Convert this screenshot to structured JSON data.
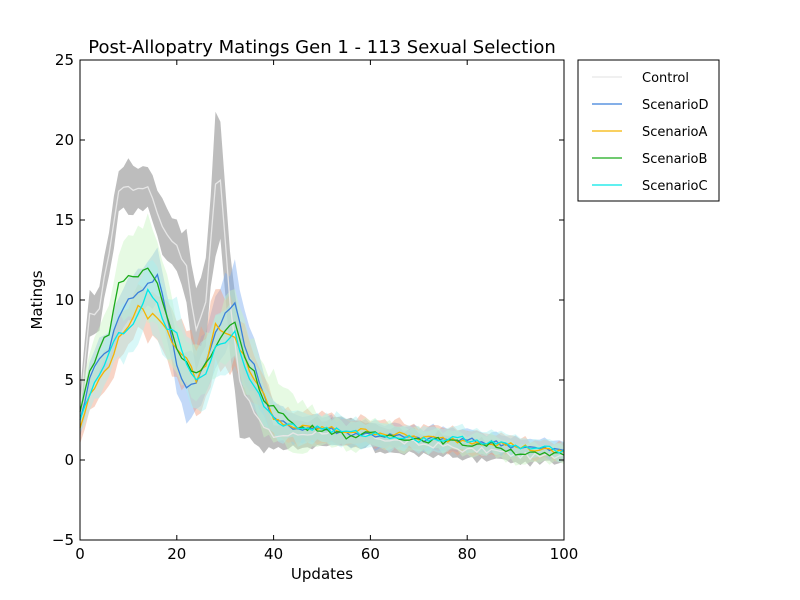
{
  "chart_data": {
    "type": "line",
    "title": "Post-Allopatry Matings Gen 1 - 113 Sexual Selection",
    "xlabel": "Updates",
    "ylabel": "Matings",
    "xlim": [
      0,
      100
    ],
    "ylim": [
      -5,
      25
    ],
    "x_ticks": [
      0,
      20,
      40,
      60,
      80,
      100
    ],
    "y_ticks": [
      -5,
      0,
      5,
      10,
      15,
      20,
      25
    ],
    "grid": false,
    "legend_position": "outside-right-top",
    "series": [
      {
        "name": "Control",
        "color": "#e6e6e6",
        "band_color": "#999999",
        "keypoints": [
          [
            0,
            3
          ],
          [
            2,
            9
          ],
          [
            4,
            9.5
          ],
          [
            6,
            13
          ],
          [
            8,
            16.8
          ],
          [
            10,
            17.2
          ],
          [
            12,
            16.8
          ],
          [
            14,
            17.2
          ],
          [
            16,
            15.5
          ],
          [
            18,
            14
          ],
          [
            20,
            13.5
          ],
          [
            22,
            12
          ],
          [
            24,
            8
          ],
          [
            26,
            10
          ],
          [
            28,
            17.3
          ],
          [
            29,
            17.4
          ],
          [
            31,
            10
          ],
          [
            33,
            5
          ],
          [
            35,
            3.5
          ],
          [
            38,
            2
          ],
          [
            40,
            1.5
          ],
          [
            45,
            1.6
          ],
          [
            50,
            1.8
          ],
          [
            55,
            1.6
          ],
          [
            60,
            1.5
          ],
          [
            65,
            1.2
          ],
          [
            70,
            1.0
          ],
          [
            75,
            0.9
          ],
          [
            80,
            0.6
          ],
          [
            85,
            0.6
          ],
          [
            90,
            0.3
          ],
          [
            95,
            0.2
          ],
          [
            100,
            0.3
          ]
        ],
        "band_width": [
          [
            0,
            1.5
          ],
          [
            10,
            1.5
          ],
          [
            20,
            1.5
          ],
          [
            26,
            3
          ],
          [
            29,
            4.5
          ],
          [
            33,
            3
          ],
          [
            40,
            0.8
          ],
          [
            60,
            0.8
          ],
          [
            100,
            0.4
          ]
        ]
      },
      {
        "name": "ScenarioD",
        "color": "#3a7fd9",
        "band_color": "#7aaaf0",
        "keypoints": [
          [
            0,
            2.5
          ],
          [
            2,
            5
          ],
          [
            4,
            6.5
          ],
          [
            6,
            7
          ],
          [
            8,
            9
          ],
          [
            10,
            10
          ],
          [
            12,
            10.5
          ],
          [
            14,
            11
          ],
          [
            16,
            11.5
          ],
          [
            18,
            9
          ],
          [
            20,
            6
          ],
          [
            22,
            4.5
          ],
          [
            24,
            5
          ],
          [
            26,
            6
          ],
          [
            28,
            8
          ],
          [
            30,
            9
          ],
          [
            32,
            10
          ],
          [
            34,
            7
          ],
          [
            36,
            6
          ],
          [
            38,
            4
          ],
          [
            40,
            2.5
          ],
          [
            45,
            2
          ],
          [
            50,
            2
          ],
          [
            55,
            1.7
          ],
          [
            60,
            1.6
          ],
          [
            65,
            1.5
          ],
          [
            70,
            1.3
          ],
          [
            75,
            1.3
          ],
          [
            80,
            1.2
          ],
          [
            85,
            1.1
          ],
          [
            90,
            0.9
          ],
          [
            95,
            0.7
          ],
          [
            100,
            0.6
          ]
        ],
        "band_width": [
          [
            0,
            1
          ],
          [
            15,
            1.5
          ],
          [
            32,
            2.5
          ],
          [
            40,
            0.9
          ],
          [
            100,
            0.5
          ]
        ]
      },
      {
        "name": "ScenarioA",
        "color": "#f5b300",
        "band_color": "#f0a080",
        "keypoints": [
          [
            0,
            2
          ],
          [
            2,
            4
          ],
          [
            4,
            5
          ],
          [
            6,
            6
          ],
          [
            8,
            7.5
          ],
          [
            10,
            8.5
          ],
          [
            12,
            9.5
          ],
          [
            14,
            9
          ],
          [
            16,
            9
          ],
          [
            18,
            8
          ],
          [
            20,
            7
          ],
          [
            22,
            6.5
          ],
          [
            24,
            5
          ],
          [
            26,
            6
          ],
          [
            28,
            8.5
          ],
          [
            30,
            8
          ],
          [
            32,
            7.5
          ],
          [
            34,
            6.5
          ],
          [
            36,
            5
          ],
          [
            38,
            4
          ],
          [
            40,
            2.5
          ],
          [
            45,
            2
          ],
          [
            50,
            2
          ],
          [
            55,
            1.8
          ],
          [
            60,
            1.8
          ],
          [
            65,
            1.6
          ],
          [
            70,
            1.4
          ],
          [
            75,
            1.3
          ],
          [
            80,
            1.2
          ],
          [
            85,
            1.1
          ],
          [
            90,
            0.9
          ],
          [
            95,
            0.6
          ],
          [
            100,
            0.5
          ]
        ],
        "band_width": [
          [
            0,
            1
          ],
          [
            14,
            1.5
          ],
          [
            28,
            2.5
          ],
          [
            40,
            1
          ],
          [
            100,
            0.5
          ]
        ]
      },
      {
        "name": "ScenarioB",
        "color": "#1aaa1a",
        "band_color": "#c8f5c0",
        "keypoints": [
          [
            0,
            3
          ],
          [
            2,
            5.5
          ],
          [
            4,
            7
          ],
          [
            6,
            8
          ],
          [
            8,
            11
          ],
          [
            10,
            11.5
          ],
          [
            12,
            11.5
          ],
          [
            14,
            12
          ],
          [
            16,
            11
          ],
          [
            18,
            9
          ],
          [
            20,
            7
          ],
          [
            22,
            6
          ],
          [
            24,
            5.5
          ],
          [
            26,
            6
          ],
          [
            28,
            7
          ],
          [
            30,
            8
          ],
          [
            32,
            8.5
          ],
          [
            34,
            6.5
          ],
          [
            36,
            5.5
          ],
          [
            38,
            3.5
          ],
          [
            40,
            3.5
          ],
          [
            43,
            2.5
          ],
          [
            45,
            2
          ],
          [
            50,
            2
          ],
          [
            55,
            1.5
          ],
          [
            60,
            1.6
          ],
          [
            65,
            1.5
          ],
          [
            70,
            1.3
          ],
          [
            75,
            1.2
          ],
          [
            80,
            1.0
          ],
          [
            85,
            1.0
          ],
          [
            90,
            0.5
          ],
          [
            95,
            0.3
          ],
          [
            100,
            0.3
          ]
        ],
        "band_width": [
          [
            0,
            1
          ],
          [
            14,
            3
          ],
          [
            22,
            1.5
          ],
          [
            34,
            2
          ],
          [
            42,
            2
          ],
          [
            50,
            0.9
          ],
          [
            100,
            0.5
          ]
        ]
      },
      {
        "name": "ScenarioC",
        "color": "#00e8e8",
        "band_color": "#a8f0f0",
        "keypoints": [
          [
            0,
            2.5
          ],
          [
            2,
            4
          ],
          [
            4,
            5.5
          ],
          [
            6,
            6.5
          ],
          [
            8,
            8
          ],
          [
            10,
            8
          ],
          [
            12,
            9
          ],
          [
            14,
            10.5
          ],
          [
            16,
            10
          ],
          [
            18,
            8
          ],
          [
            20,
            8
          ],
          [
            22,
            6
          ],
          [
            24,
            5
          ],
          [
            26,
            5.5
          ],
          [
            28,
            7
          ],
          [
            30,
            7.5
          ],
          [
            32,
            8
          ],
          [
            34,
            6
          ],
          [
            36,
            4.5
          ],
          [
            38,
            3.5
          ],
          [
            40,
            2.5
          ],
          [
            45,
            2
          ],
          [
            50,
            2
          ],
          [
            55,
            1.7
          ],
          [
            60,
            1.6
          ],
          [
            65,
            1.5
          ],
          [
            70,
            1.3
          ],
          [
            75,
            1.3
          ],
          [
            80,
            1.3
          ],
          [
            85,
            1.1
          ],
          [
            90,
            0.8
          ],
          [
            95,
            0.7
          ],
          [
            100,
            0.6
          ]
        ],
        "band_width": [
          [
            0,
            1
          ],
          [
            14,
            2
          ],
          [
            30,
            2
          ],
          [
            40,
            1
          ],
          [
            100,
            0.5
          ]
        ]
      }
    ]
  }
}
